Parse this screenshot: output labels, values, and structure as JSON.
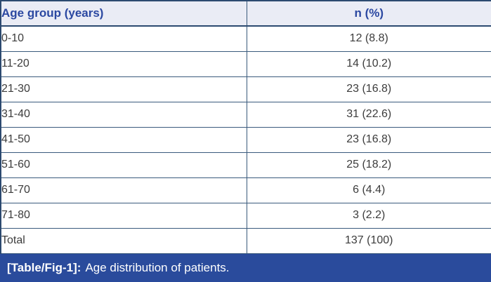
{
  "chart_data": {
    "type": "table",
    "title": "[Table/Fig-1]: Age distribution of patients.",
    "columns": [
      "Age group (years)",
      "n (%)"
    ],
    "rows": [
      [
        "0-10",
        "12 (8.8)"
      ],
      [
        "11-20",
        "14 (10.2)"
      ],
      [
        "21-30",
        "23 (16.8)"
      ],
      [
        "31-40",
        "31 (22.6)"
      ],
      [
        "41-50",
        "23 (16.8)"
      ],
      [
        "51-60",
        "25 (18.2)"
      ],
      [
        "61-70",
        "6 (4.4)"
      ],
      [
        "71-80",
        "3 (2.2)"
      ],
      [
        "Total",
        "137 (100)"
      ]
    ]
  },
  "caption": {
    "label": "[Table/Fig-1]:",
    "text": "Age distribution of patients."
  },
  "colors": {
    "caption_bg": "#2a4b9c",
    "header_bg": "#eaecf5",
    "header_text": "#2b48a1",
    "border_outer": "#2c4a70",
    "border_inner": "#3a5a7c",
    "body_text": "#3c3c3c"
  }
}
